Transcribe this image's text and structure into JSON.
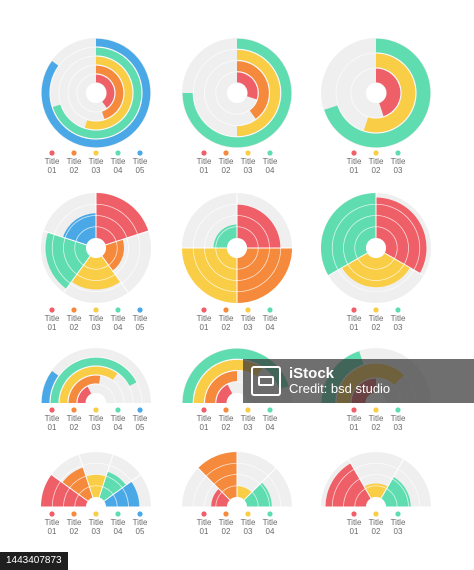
{
  "colors": {
    "red": "#ef5f67",
    "orange": "#f5893c",
    "yellow": "#f9cd45",
    "mint": "#5fdcb0",
    "blue": "#4aa8e6",
    "track": "#efefef"
  },
  "watermark": {
    "brand": "iStock",
    "credit": "Credit: bsd studio"
  },
  "footer_id": "1443407873",
  "chart_data": [
    {
      "type": "radial-pie",
      "legend": [
        "Title 01",
        "Title 02",
        "Title 03",
        "Title 04",
        "Title 05"
      ],
      "values": [
        0.4,
        0.45,
        0.55,
        0.7,
        0.85
      ],
      "colors": [
        "red",
        "orange",
        "yellow",
        "mint",
        "blue"
      ]
    },
    {
      "type": "radial-pie",
      "legend": [
        "Title 01",
        "Title 02",
        "Title 03",
        "Title 04"
      ],
      "values": [
        0.3,
        0.4,
        0.5,
        0.75
      ],
      "colors": [
        "red",
        "orange",
        "yellow",
        "mint"
      ]
    },
    {
      "type": "radial-pie",
      "legend": [
        "Title 01",
        "Title 02",
        "Title 03"
      ],
      "values": [
        0.45,
        0.55,
        0.7
      ],
      "colors": [
        "red",
        "yellow",
        "mint"
      ]
    },
    {
      "type": "polar-area",
      "legend": [
        "Title 01",
        "Title 02",
        "Title 03",
        "Title 04",
        "Title 05"
      ],
      "values": [
        1.0,
        0.4,
        0.7,
        0.9,
        0.55
      ],
      "colors": [
        "red",
        "orange",
        "yellow",
        "mint",
        "blue"
      ]
    },
    {
      "type": "polar-area",
      "legend": [
        "Title 01",
        "Title 02",
        "Title 03",
        "Title 04"
      ],
      "values": [
        0.75,
        1.0,
        1.0,
        0.3
      ],
      "colors": [
        "red",
        "orange",
        "yellow",
        "mint"
      ]
    },
    {
      "type": "polar-area",
      "legend": [
        "Title 01",
        "Title 02",
        "Title 03"
      ],
      "values": [
        0.9,
        0.65,
        1.0
      ],
      "colors": [
        "red",
        "yellow",
        "mint"
      ]
    },
    {
      "type": "semi-radial",
      "legend": [
        "Title 01",
        "Title 02",
        "Title 03",
        "Title 04",
        "Title 05"
      ],
      "values": [
        0.35,
        0.55,
        0.7,
        0.85,
        0.2
      ],
      "colors": [
        "red",
        "orange",
        "yellow",
        "mint",
        "blue"
      ]
    },
    {
      "type": "semi-radial",
      "legend": [
        "Title 01",
        "Title 02",
        "Title 03",
        "Title 04"
      ],
      "values": [
        0.35,
        0.5,
        0.7,
        0.9
      ],
      "colors": [
        "red",
        "orange",
        "yellow",
        "mint"
      ]
    },
    {
      "type": "semi-radial",
      "legend": [
        "Title 01",
        "Title 02",
        "Title 03"
      ],
      "values": [
        0.5,
        0.75,
        0.4
      ],
      "colors": [
        "red",
        "yellow",
        "mint"
      ]
    },
    {
      "type": "semi-polar",
      "legend": [
        "Title 01",
        "Title 02",
        "Title 03",
        "Title 04",
        "Title 05"
      ],
      "values": [
        1.0,
        0.7,
        0.5,
        0.6,
        0.75
      ],
      "colors": [
        "red",
        "orange",
        "yellow",
        "mint",
        "blue"
      ]
    },
    {
      "type": "semi-polar",
      "legend": [
        "Title 01",
        "Title 02",
        "Title 03",
        "Title 04"
      ],
      "values": [
        0.35,
        1.0,
        0.25,
        0.55
      ],
      "colors": [
        "red",
        "orange",
        "yellow",
        "mint"
      ]
    },
    {
      "type": "semi-polar",
      "legend": [
        "Title 01",
        "Title 02",
        "Title 03"
      ],
      "values": [
        0.9,
        0.3,
        0.55
      ],
      "colors": [
        "red",
        "yellow",
        "mint"
      ]
    }
  ]
}
